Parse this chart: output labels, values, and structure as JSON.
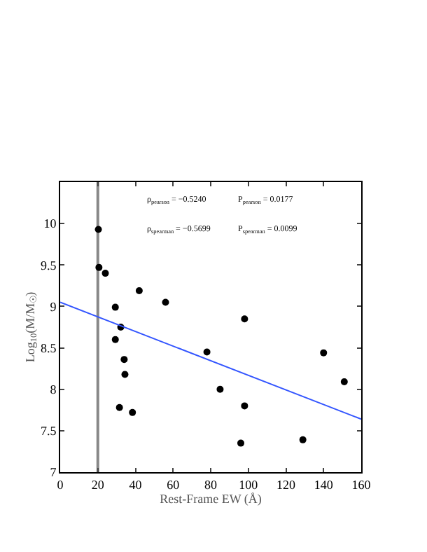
{
  "chart_data": {
    "type": "scatter",
    "xlabel": "Rest-Frame EW (Å)",
    "ylabel": "Log$_{10}$(M/M$_{☉}$)",
    "annotations": [
      "ρ$_{pearson}$ = −0.5240",
      "P$_{pearson}$ = 0.0177",
      "ρ$_{spearman}$ = −0.5699",
      "P$_{spearman}$ = 0.0099"
    ],
    "series": [
      {
        "color": "#000000",
        "x": [
          20.3,
          20.6,
          24,
          29.3,
          42,
          56,
          98,
          32.2,
          29.3,
          34,
          34.4,
          31.5,
          38.4,
          78,
          85,
          98,
          96,
          129,
          140,
          151
        ],
        "values": [
          9.93,
          9.47,
          9.4,
          8.99,
          9.19,
          9.05,
          8.85,
          8.75,
          8.6,
          8.36,
          8.18,
          7.78,
          7.72,
          8.45,
          8.0,
          7.8,
          7.35,
          7.39,
          8.44,
          8.09
        ]
      },
      {
        "type": "line",
        "marker": "none",
        "color": "#3355ff",
        "x": [
          0,
          160
        ],
        "values": [
          9.05,
          7.64
        ]
      }
    ],
    "ref_lines": [
      {
        "axis": "x",
        "value": 20,
        "color": "#888888"
      }
    ],
    "xlim": [
      0,
      160
    ],
    "xticks": [
      0,
      20,
      40,
      60,
      80,
      100,
      120,
      140,
      160
    ],
    "ylim": [
      7,
      10.5
    ],
    "yticks": [
      7,
      7.5,
      8,
      8.5,
      9,
      9.5,
      10
    ],
    "marker": "circle"
  }
}
